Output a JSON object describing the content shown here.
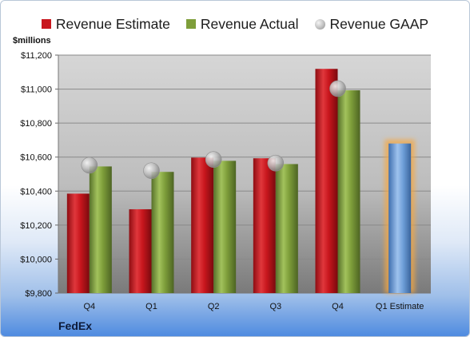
{
  "legend": [
    {
      "label": "Revenue Estimate",
      "color": "#c8161d",
      "kind": "bar"
    },
    {
      "label": "Revenue Actual",
      "color": "#7e9e3a",
      "kind": "bar"
    },
    {
      "label": "Revenue GAAP",
      "color": "#b0b0b0",
      "kind": "circle"
    }
  ],
  "company": "FedEx",
  "chart_data": {
    "type": "bar",
    "ylabel": "$millions",
    "ylim": [
      9800,
      11200
    ],
    "yticks": [
      9800,
      10000,
      10200,
      10400,
      10600,
      10800,
      11000,
      11200
    ],
    "ytick_labels": [
      "$9,800",
      "$10,000",
      "$10,200",
      "$10,400",
      "$10,600",
      "$10,800",
      "$11,000",
      "$11,200"
    ],
    "categories": [
      "Q4",
      "Q1",
      "Q2",
      "Q3",
      "Q4",
      "Q1 Estimate"
    ],
    "series": [
      {
        "name": "Revenue Estimate",
        "type": "bar",
        "color": "#c8161d",
        "values": [
          10385,
          10293,
          10597,
          10593,
          11119,
          null
        ]
      },
      {
        "name": "Revenue Actual",
        "type": "bar",
        "color": "#7e9e3a",
        "values": [
          10545,
          10513,
          10578,
          10559,
          10993,
          null
        ]
      },
      {
        "name": "Revenue GAAP",
        "type": "scatter",
        "color": "#b0b0b0",
        "values": [
          10552,
          10520,
          10586,
          10565,
          11003,
          null
        ]
      },
      {
        "name": "Q1 Estimate",
        "type": "bar",
        "color": "#6e9fd8",
        "highlight": "#f5a742",
        "values": [
          null,
          null,
          null,
          null,
          null,
          10680
        ]
      }
    ],
    "grid": true,
    "legend_position": "top"
  }
}
